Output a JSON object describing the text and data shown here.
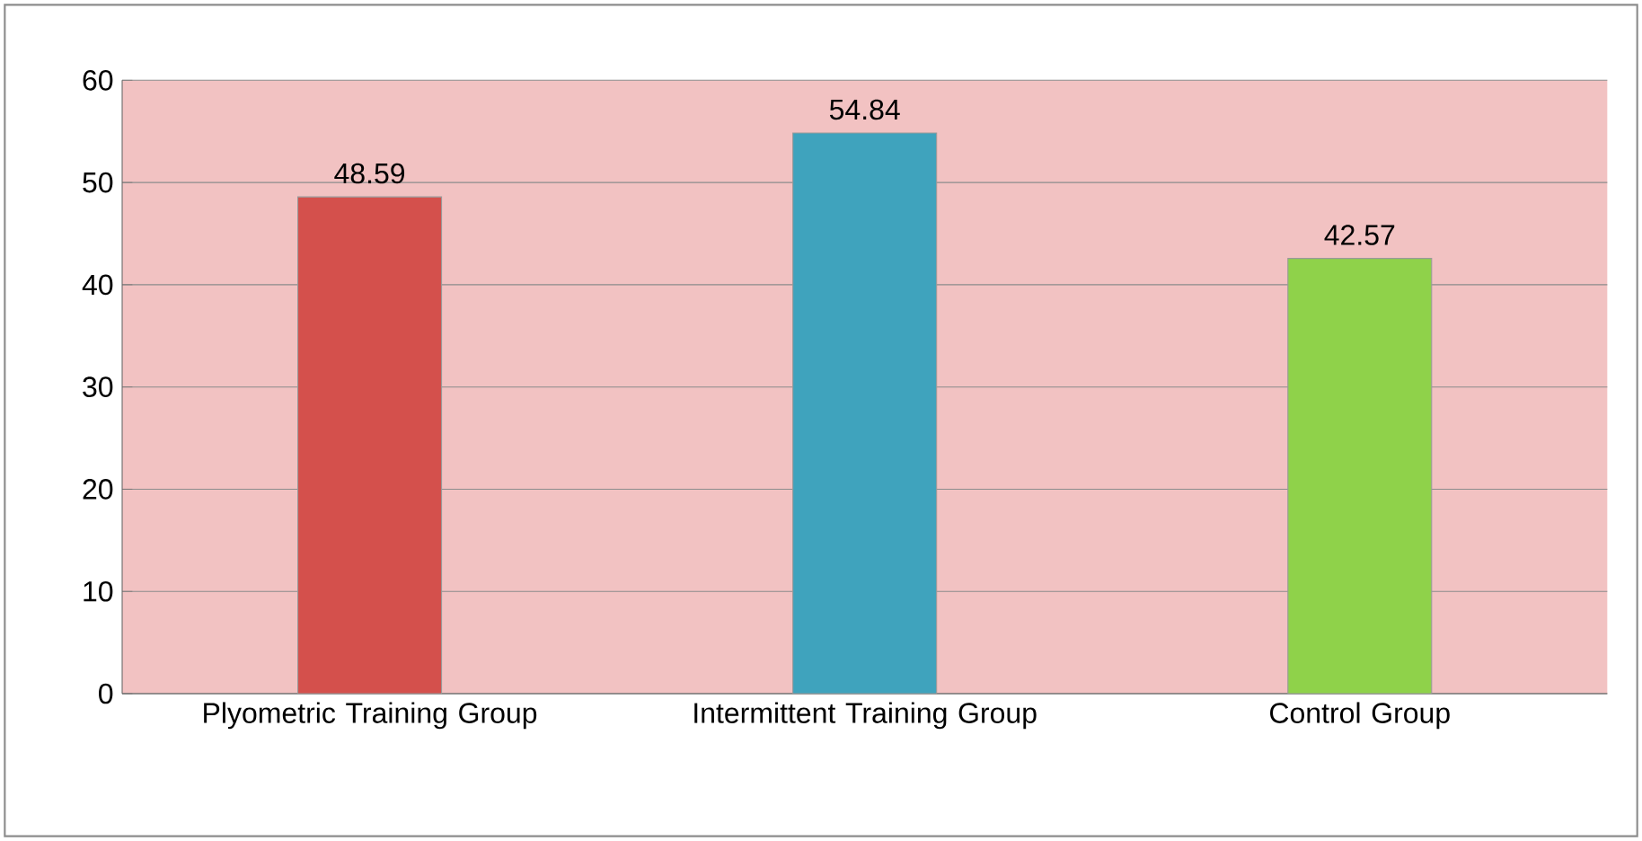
{
  "chart_data": {
    "type": "bar",
    "categories": [
      "Plyometric Training Group",
      "Intermittent Training Group",
      "Control Group"
    ],
    "values": [
      48.59,
      54.84,
      42.57
    ],
    "colors": [
      "#d4504c",
      "#3fa3bd",
      "#8fd24a"
    ],
    "ylim": [
      0,
      60
    ],
    "yticks": [
      0,
      10,
      20,
      30,
      40,
      50,
      60
    ],
    "grid": "y",
    "data_labels": true
  }
}
